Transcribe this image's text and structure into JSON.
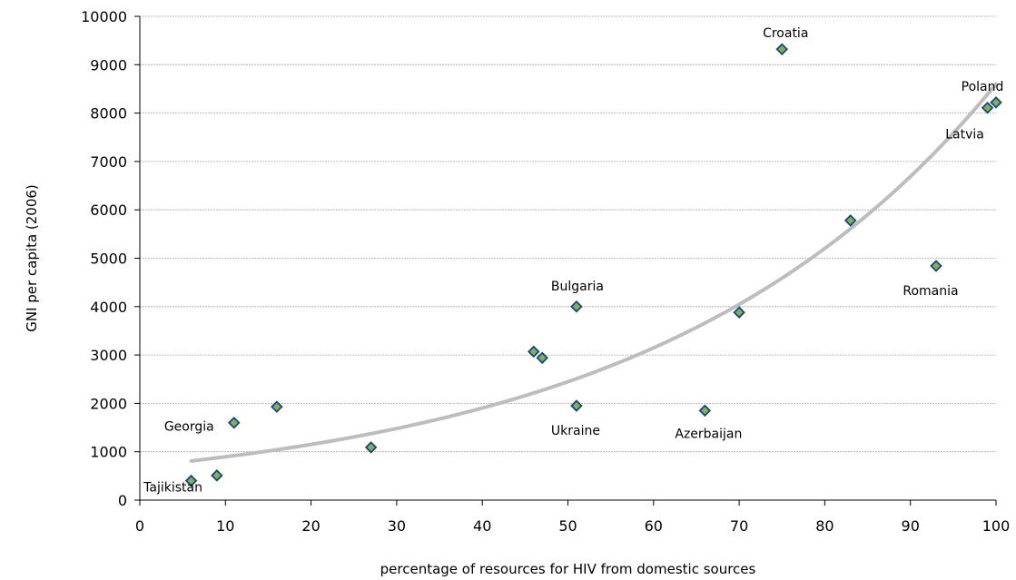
{
  "chart_data": {
    "type": "scatter",
    "title": "",
    "xlabel": "percentage of resources for HIV from domestic sources",
    "ylabel": "GNI per capita (2006)",
    "xlim": [
      0,
      100
    ],
    "ylim": [
      0,
      10000
    ],
    "xticks": [
      0,
      10,
      20,
      30,
      40,
      50,
      60,
      70,
      80,
      90,
      100
    ],
    "yticks": [
      0,
      1000,
      2000,
      3000,
      4000,
      5000,
      6000,
      7000,
      8000,
      9000,
      10000
    ],
    "grid": "horizontal",
    "legend": "none",
    "marker_color": "#7ab648",
    "marker_edge_color": "#1f3f8f",
    "trendline_color": "#bdbdbd",
    "trendline": {
      "type": "exponential",
      "x_range": [
        6,
        100
      ],
      "y_start": 810,
      "y_end": 8600
    },
    "points": [
      {
        "x": 6,
        "y": 400,
        "label": "Tajikistan"
      },
      {
        "x": 9,
        "y": 510,
        "label": ""
      },
      {
        "x": 11,
        "y": 1600,
        "label": "Georgia"
      },
      {
        "x": 16,
        "y": 1930,
        "label": ""
      },
      {
        "x": 27,
        "y": 1090,
        "label": ""
      },
      {
        "x": 46,
        "y": 3070,
        "label": ""
      },
      {
        "x": 47,
        "y": 2940,
        "label": ""
      },
      {
        "x": 51,
        "y": 4000,
        "label": "Bulgaria"
      },
      {
        "x": 51,
        "y": 1950,
        "label": "Ukraine"
      },
      {
        "x": 66,
        "y": 1850,
        "label": "Azerbaijan"
      },
      {
        "x": 70,
        "y": 3880,
        "label": ""
      },
      {
        "x": 75,
        "y": 9320,
        "label": "Croatia"
      },
      {
        "x": 83,
        "y": 5780,
        "label": ""
      },
      {
        "x": 93,
        "y": 4840,
        "label": "Romania"
      },
      {
        "x": 99,
        "y": 8110,
        "label": "Latvia"
      },
      {
        "x": 100,
        "y": 8220,
        "label": "Poland"
      }
    ]
  }
}
